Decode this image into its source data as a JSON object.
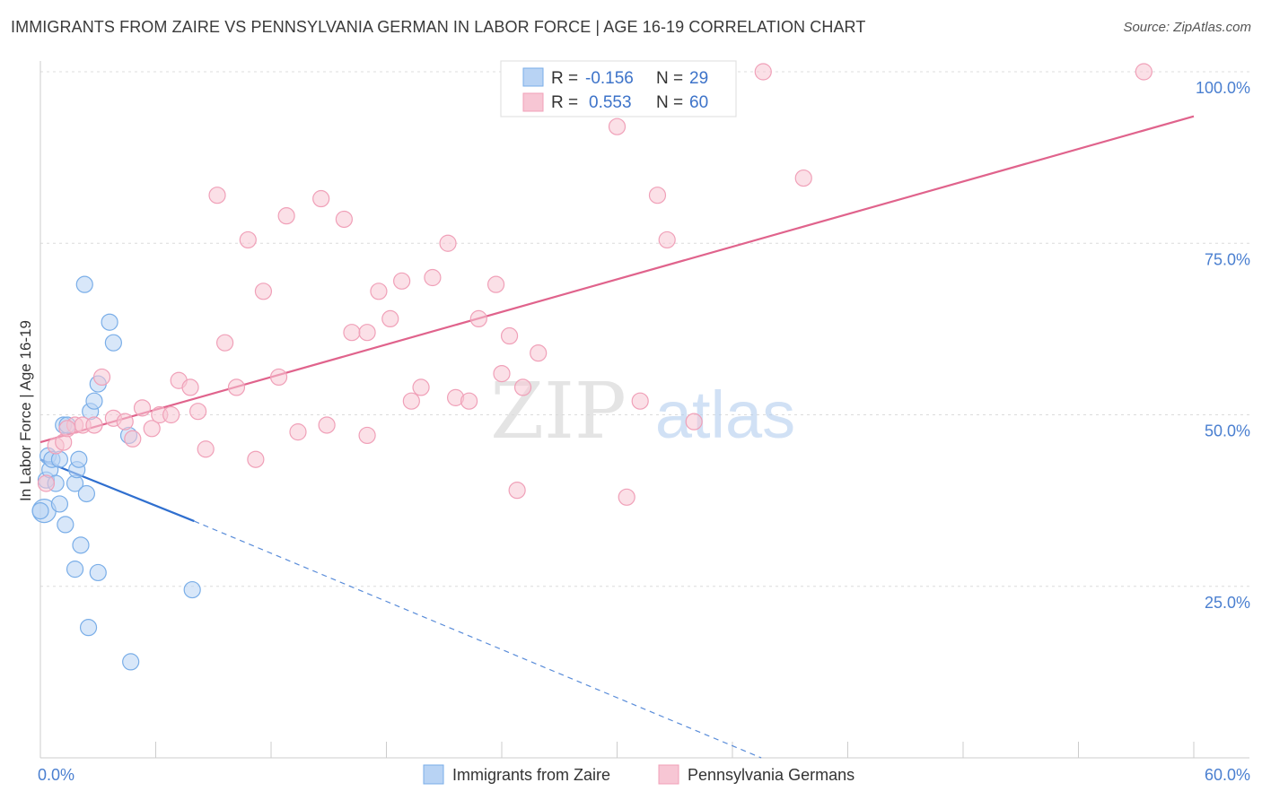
{
  "title": "IMMIGRANTS FROM ZAIRE VS PENNSYLVANIA GERMAN IN LABOR FORCE | AGE 16-19 CORRELATION CHART",
  "source": "Source: ZipAtlas.com",
  "watermark": {
    "zip": "ZIP",
    "atlas": "atlas"
  },
  "chart_data": {
    "type": "scatter",
    "ylabel": "In Labor Force | Age 16-19",
    "xlim": [
      0,
      60
    ],
    "ylim": [
      0,
      100
    ],
    "x_tick_labels": [
      {
        "value": 0,
        "label": "0.0%"
      },
      {
        "value": 60,
        "label": "60.0%"
      }
    ],
    "y_tick_labels": [
      {
        "value": 25,
        "label": "25.0%"
      },
      {
        "value": 50,
        "label": "50.0%"
      },
      {
        "value": 75,
        "label": "75.0%"
      },
      {
        "value": 100,
        "label": "100.0%"
      }
    ],
    "grid": true,
    "legend": {
      "placement": "top-center",
      "rows": [
        {
          "r_label": "R =",
          "r_value": "-0.156",
          "n_label": "N =",
          "n_value": "29"
        },
        {
          "r_label": "R =",
          "r_value": "0.553",
          "n_label": "N =",
          "n_value": "60"
        }
      ]
    },
    "series": [
      {
        "name": "Immigrants from Zaire",
        "color": "#7aaee8",
        "fill": "#b8d3f4",
        "line_color": "#2f6fcf",
        "trend": {
          "x0": 0.0,
          "y0": 43.5,
          "x1": 8.0,
          "y1": 34.5,
          "dash_x1": 37.5,
          "dash_y1": 0.0
        },
        "points": [
          [
            0.2,
            36
          ],
          [
            0.3,
            40.5
          ],
          [
            0.4,
            44
          ],
          [
            0.5,
            42
          ],
          [
            0.6,
            43.5
          ],
          [
            0.8,
            40
          ],
          [
            1.0,
            37
          ],
          [
            1.0,
            43.5
          ],
          [
            1.2,
            48.5
          ],
          [
            1.3,
            34
          ],
          [
            1.4,
            48.5
          ],
          [
            1.8,
            27.5
          ],
          [
            1.8,
            40
          ],
          [
            1.9,
            42
          ],
          [
            2.0,
            43.5
          ],
          [
            2.1,
            31
          ],
          [
            2.3,
            69
          ],
          [
            2.4,
            38.5
          ],
          [
            2.5,
            19
          ],
          [
            2.6,
            50.5
          ],
          [
            2.8,
            52
          ],
          [
            3.0,
            27
          ],
          [
            3.0,
            54.5
          ],
          [
            3.6,
            63.5
          ],
          [
            3.8,
            60.5
          ],
          [
            4.6,
            47
          ],
          [
            4.7,
            14
          ],
          [
            7.9,
            24.5
          ],
          [
            0.0,
            36
          ]
        ]
      },
      {
        "name": "Pennsylvania Germans",
        "color": "#f0a0b8",
        "fill": "#f7c6d4",
        "line_color": "#e0638c",
        "trend": {
          "x0": 0.0,
          "y0": 46.0,
          "x1": 60.0,
          "y1": 93.5
        },
        "points": [
          [
            0.3,
            40
          ],
          [
            0.8,
            45.5
          ],
          [
            1.2,
            46
          ],
          [
            1.8,
            48.5
          ],
          [
            2.2,
            48.5
          ],
          [
            2.8,
            48.5
          ],
          [
            3.2,
            55.5
          ],
          [
            3.8,
            49.5
          ],
          [
            4.4,
            49
          ],
          [
            4.8,
            46.5
          ],
          [
            5.3,
            51
          ],
          [
            5.8,
            48
          ],
          [
            6.2,
            50
          ],
          [
            6.8,
            50
          ],
          [
            7.2,
            55
          ],
          [
            7.8,
            54
          ],
          [
            8.2,
            50.5
          ],
          [
            8.6,
            45
          ],
          [
            9.2,
            82
          ],
          [
            9.6,
            60.5
          ],
          [
            10.2,
            54
          ],
          [
            10.8,
            75.5
          ],
          [
            11.2,
            43.5
          ],
          [
            11.6,
            68
          ],
          [
            12.4,
            55.5
          ],
          [
            12.8,
            79
          ],
          [
            13.4,
            47.5
          ],
          [
            14.6,
            81.5
          ],
          [
            14.9,
            48.5
          ],
          [
            15.8,
            78.5
          ],
          [
            16.2,
            62
          ],
          [
            17.0,
            47
          ],
          [
            17.0,
            62
          ],
          [
            17.6,
            68
          ],
          [
            18.2,
            64
          ],
          [
            18.8,
            69.5
          ],
          [
            19.3,
            52
          ],
          [
            19.8,
            54
          ],
          [
            20.4,
            70
          ],
          [
            21.2,
            75
          ],
          [
            21.6,
            52.5
          ],
          [
            22.3,
            52
          ],
          [
            22.8,
            64
          ],
          [
            23.7,
            69
          ],
          [
            24.0,
            56
          ],
          [
            24.4,
            61.5
          ],
          [
            24.8,
            39
          ],
          [
            25.1,
            54
          ],
          [
            25.9,
            59
          ],
          [
            28.0,
            100
          ],
          [
            30.0,
            92
          ],
          [
            30.5,
            38
          ],
          [
            31.2,
            52
          ],
          [
            32.1,
            82
          ],
          [
            32.6,
            75.5
          ],
          [
            34.0,
            49
          ],
          [
            37.6,
            100
          ],
          [
            39.7,
            84.5
          ],
          [
            57.4,
            100
          ],
          [
            1.4,
            48
          ]
        ]
      }
    ]
  },
  "bottom_legend": [
    {
      "label": "Immigrants from Zaire",
      "color": "#b8d3f4",
      "border": "#7aaee8"
    },
    {
      "label": "Pennsylvania Germans",
      "color": "#f7c6d4",
      "border": "#f0a0b8"
    }
  ]
}
